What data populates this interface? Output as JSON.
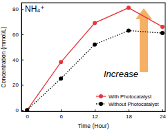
{
  "chart_data": {
    "type": "line",
    "title": "NH₄⁺",
    "x_label": "Time (Hour)",
    "y_label": "Concentration (mmol/L)",
    "annotation": "Increase",
    "x": [
      0,
      6,
      12,
      18,
      24
    ],
    "series": [
      {
        "name": "With Photocatalyst",
        "color": "#e8343a",
        "marker": "circle",
        "line_style": "solid",
        "values": [
          0,
          38,
          69,
          81,
          66
        ]
      },
      {
        "name": "Without Photocatalyst",
        "color": "#000000",
        "marker": "circle",
        "line_style": "dotted",
        "values": [
          0,
          25,
          52,
          63,
          61
        ]
      }
    ],
    "xlim": [
      -1,
      24.5
    ],
    "xticks": [
      0,
      6,
      12,
      18,
      24
    ],
    "ylim": [
      -1,
      85
    ],
    "yticks": [
      0,
      20,
      40,
      60,
      80
    ],
    "legend": "lower right"
  }
}
